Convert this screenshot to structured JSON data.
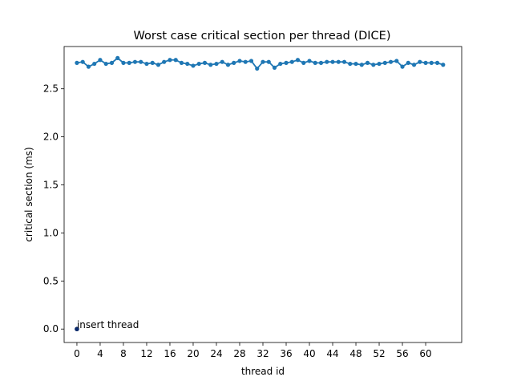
{
  "chart_data": {
    "type": "line",
    "title": "Worst case critical section per thread (DICE)",
    "xlabel": "thread id",
    "ylabel": "critical section (ms)",
    "xlim": [
      -2.2,
      66.2
    ],
    "ylim": [
      -0.14,
      2.94
    ],
    "xticks": [
      0,
      4,
      8,
      12,
      16,
      20,
      24,
      28,
      32,
      36,
      40,
      44,
      48,
      52,
      56,
      60
    ],
    "yticks": [
      "0.0",
      "0.5",
      "1.0",
      "1.5",
      "2.0",
      "2.5"
    ],
    "grid": false,
    "line_color": "#1f77b4",
    "insert_color": "#0b2a6b",
    "series": [
      {
        "x": [
          0,
          1,
          2,
          3,
          4,
          5,
          6,
          7,
          8,
          9,
          10,
          11,
          12,
          13,
          14,
          15,
          16,
          17,
          18,
          19,
          20,
          21,
          22,
          23,
          24,
          25,
          26,
          27,
          28,
          29,
          30,
          31,
          32,
          33,
          34,
          35,
          36,
          37,
          38,
          39,
          40,
          41,
          42,
          43,
          44,
          45,
          46,
          47,
          48,
          49,
          50,
          51,
          52,
          53,
          54,
          55,
          56,
          57,
          58,
          59,
          60,
          61,
          62,
          63
        ],
        "values": [
          2.77,
          2.78,
          2.73,
          2.76,
          2.8,
          2.76,
          2.77,
          2.82,
          2.77,
          2.77,
          2.78,
          2.78,
          2.76,
          2.77,
          2.75,
          2.78,
          2.8,
          2.8,
          2.77,
          2.76,
          2.74,
          2.76,
          2.77,
          2.75,
          2.76,
          2.78,
          2.75,
          2.77,
          2.79,
          2.78,
          2.79,
          2.71,
          2.78,
          2.78,
          2.72,
          2.76,
          2.77,
          2.78,
          2.8,
          2.77,
          2.79,
          2.77,
          2.77,
          2.78,
          2.78,
          2.78,
          2.78,
          2.76,
          2.76,
          2.75,
          2.77,
          2.75,
          2.76,
          2.77,
          2.78,
          2.79,
          2.73,
          2.77,
          2.75,
          2.78,
          2.77,
          2.77,
          2.77,
          2.75
        ]
      }
    ],
    "annotation": {
      "x": 0,
      "y": 0.0,
      "text": "insert thread"
    }
  }
}
